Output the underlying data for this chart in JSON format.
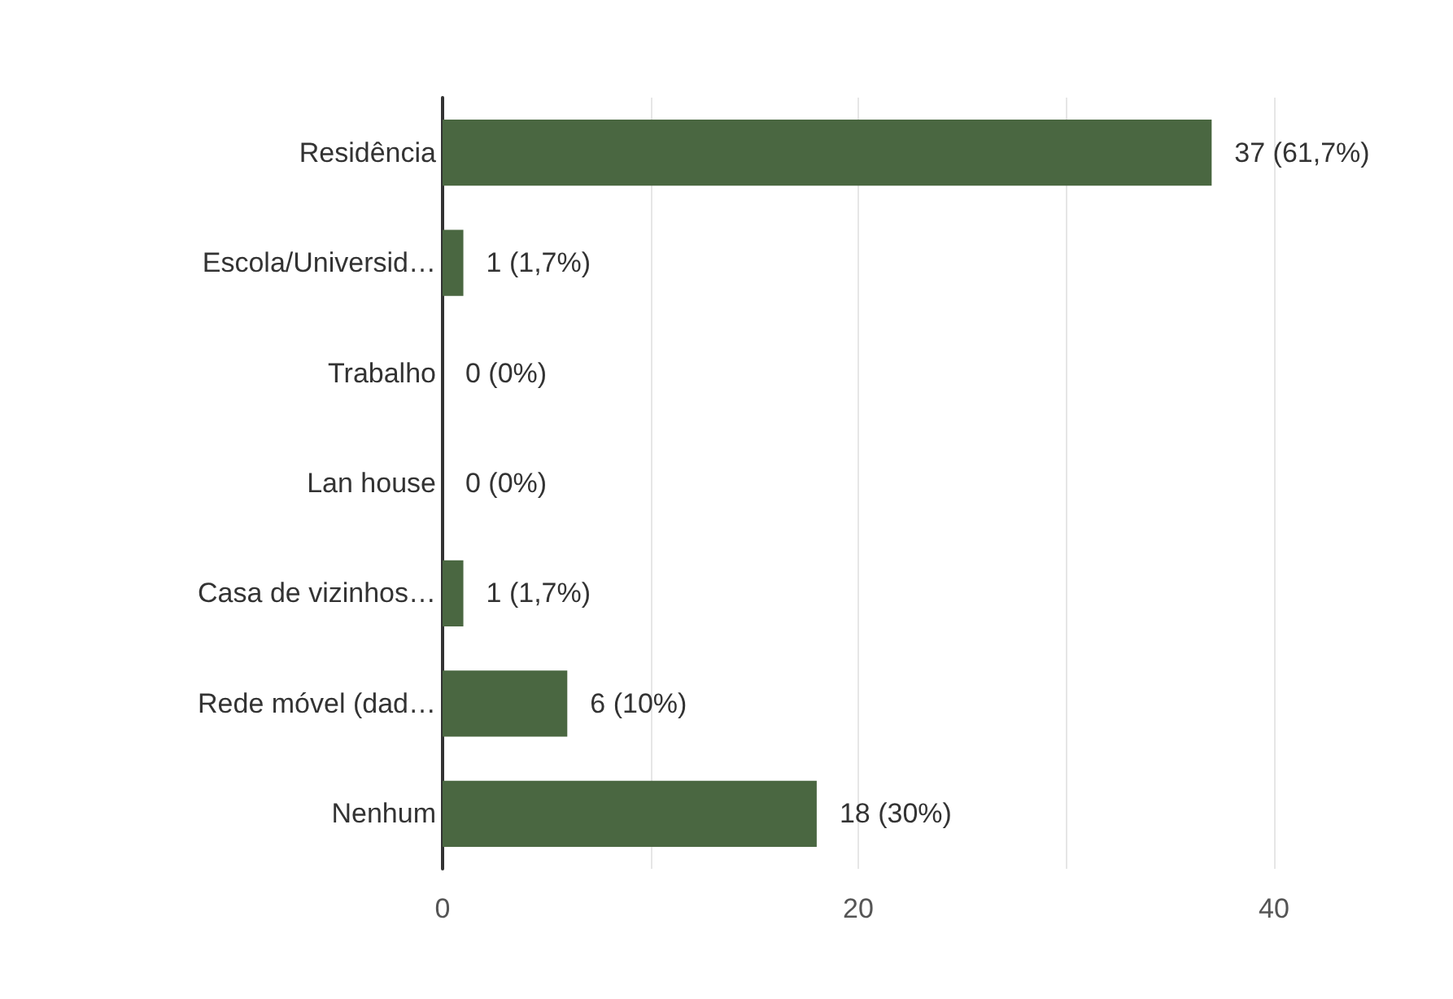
{
  "chart_data": {
    "type": "bar",
    "orientation": "horizontal",
    "categories": [
      "Residência",
      "Escola/Universid…",
      "Trabalho",
      "Lan house",
      "Casa de vizinhos…",
      "Rede móvel (dad…",
      "Nenhum"
    ],
    "values": [
      37,
      1,
      0,
      0,
      1,
      6,
      18
    ],
    "value_labels": [
      "37 (61,7%)",
      "1 (1,7%)",
      "0 (0%)",
      "0 (0%)",
      "1 (1,7%)",
      "6 (10%)",
      "18 (30%)"
    ],
    "color": "#4a6741",
    "xlim": [
      0,
      40
    ],
    "xticks": [
      0,
      {
        "value": 10,
        "label": null
      },
      20,
      {
        "value": 30,
        "label": null
      },
      40
    ],
    "grid": "x"
  }
}
